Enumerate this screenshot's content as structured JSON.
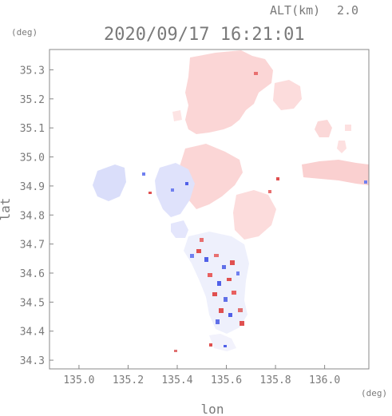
{
  "header": {
    "alt_label": "ALT(km)",
    "alt_value": "2.0",
    "timestamp": "2020/09/17 16:21:01",
    "y_unit": "(deg)",
    "x_unit": "(deg)"
  },
  "axes": {
    "xlabel": "lon",
    "ylabel": "lat",
    "x_ticks": [
      "135.0",
      "135.2",
      "135.4",
      "135.6",
      "135.8",
      "136.0"
    ],
    "y_ticks": [
      "35.3",
      "35.2",
      "35.1",
      "35.0",
      "34.9",
      "34.8",
      "34.7",
      "34.6",
      "34.5",
      "34.4",
      "34.3"
    ],
    "x_range": [
      134.88,
      136.18
    ],
    "y_range": [
      34.27,
      35.37
    ]
  },
  "field": {
    "quantity": "radial velocity (doppler)",
    "colors": {
      "approach_light": "#d8dcfb",
      "approach_strong": "#5060e8",
      "recede_light": "#fbd4d4",
      "recede_strong": "#e05050",
      "frame": "#888888",
      "text": "#7a7a7a"
    }
  }
}
